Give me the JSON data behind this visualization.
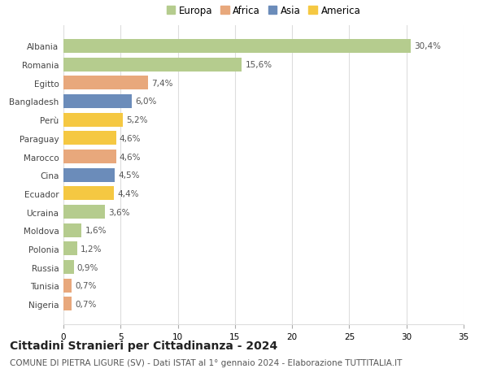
{
  "countries": [
    "Albania",
    "Romania",
    "Egitto",
    "Bangladesh",
    "Perù",
    "Paraguay",
    "Marocco",
    "Cina",
    "Ecuador",
    "Ucraina",
    "Moldova",
    "Polonia",
    "Russia",
    "Tunisia",
    "Nigeria"
  ],
  "values": [
    30.4,
    15.6,
    7.4,
    6.0,
    5.2,
    4.6,
    4.6,
    4.5,
    4.4,
    3.6,
    1.6,
    1.2,
    0.9,
    0.7,
    0.7
  ],
  "labels": [
    "30,4%",
    "15,6%",
    "7,4%",
    "6,0%",
    "5,2%",
    "4,6%",
    "4,6%",
    "4,5%",
    "4,4%",
    "3,6%",
    "1,6%",
    "1,2%",
    "0,9%",
    "0,7%",
    "0,7%"
  ],
  "colors": [
    "#b5cc8e",
    "#b5cc8e",
    "#e8a87c",
    "#6b8cba",
    "#f5c842",
    "#f5c842",
    "#e8a87c",
    "#6b8cba",
    "#f5c842",
    "#b5cc8e",
    "#b5cc8e",
    "#b5cc8e",
    "#b5cc8e",
    "#e8a87c",
    "#e8a87c"
  ],
  "legend_labels": [
    "Europa",
    "Africa",
    "Asia",
    "America"
  ],
  "legend_colors": [
    "#b5cc8e",
    "#e8a87c",
    "#6b8cba",
    "#f5c842"
  ],
  "xlim": [
    0,
    35
  ],
  "xticks": [
    0,
    5,
    10,
    15,
    20,
    25,
    30,
    35
  ],
  "title": "Cittadini Stranieri per Cittadinanza - 2024",
  "subtitle": "COMUNE DI PIETRA LIGURE (SV) - Dati ISTAT al 1° gennaio 2024 - Elaborazione TUTTITALIA.IT",
  "bg_color": "#ffffff",
  "grid_color": "#dddddd",
  "bar_height": 0.75,
  "title_fontsize": 10,
  "subtitle_fontsize": 7.5,
  "label_fontsize": 7.5,
  "tick_fontsize": 7.5,
  "legend_fontsize": 8.5
}
